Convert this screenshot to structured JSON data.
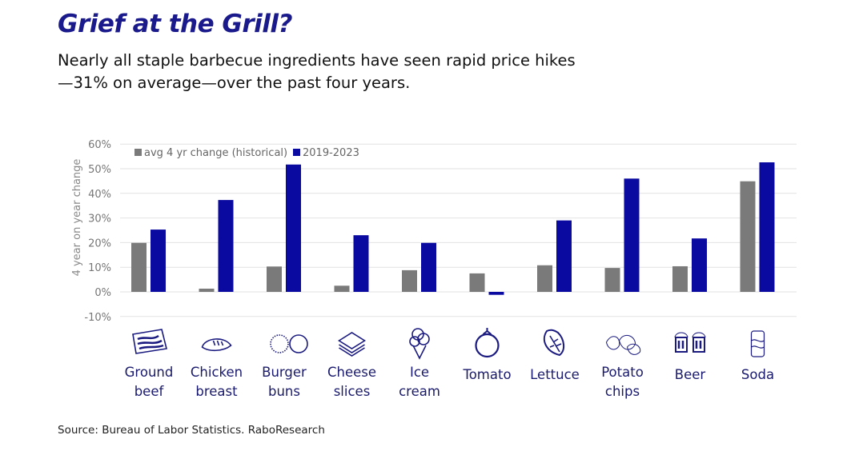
{
  "title": "Grief at the Grill?",
  "subtitle": "Nearly all staple barbecue ingredients have seen rapid price hikes—31% on average—over the past four years.",
  "source": "Source: Bureau of Labor Statistics. RaboResearch",
  "chart_data": {
    "type": "bar",
    "title": "",
    "xlabel": "",
    "ylabel": "4 year on year change",
    "ylim": [
      -10,
      60
    ],
    "yticks": [
      "60%",
      "50%",
      "40%",
      "30%",
      "20%",
      "10%",
      "0%",
      "-10%"
    ],
    "ytick_values": [
      60,
      50,
      40,
      30,
      20,
      10,
      0,
      -10
    ],
    "grid": true,
    "legend_position": "top-left",
    "categories": [
      {
        "lines": [
          "Ground",
          "beef"
        ],
        "icon": "ground-beef-icon"
      },
      {
        "lines": [
          "Chicken",
          "breast"
        ],
        "icon": "chicken-breast-icon"
      },
      {
        "lines": [
          "Burger",
          "buns"
        ],
        "icon": "burger-buns-icon"
      },
      {
        "lines": [
          "Cheese",
          "slices"
        ],
        "icon": "cheese-slices-icon"
      },
      {
        "lines": [
          "Ice",
          "cream"
        ],
        "icon": "ice-cream-icon"
      },
      {
        "lines": [
          "Tomato"
        ],
        "icon": "tomato-icon"
      },
      {
        "lines": [
          "Lettuce"
        ],
        "icon": "lettuce-icon"
      },
      {
        "lines": [
          "Potato",
          "chips"
        ],
        "icon": "potato-chips-icon"
      },
      {
        "lines": [
          "Beer"
        ],
        "icon": "beer-icon"
      },
      {
        "lines": [
          "Soda"
        ],
        "icon": "soda-icon"
      }
    ],
    "series": [
      {
        "name": "avg 4 yr change (historical)",
        "color": "#7a7a7a",
        "values": [
          19.9,
          1.3,
          10.3,
          2.5,
          8.8,
          7.5,
          10.8,
          9.7,
          10.4,
          44.9
        ]
      },
      {
        "name": "2019-2023",
        "color": "#0a0aa0",
        "values": [
          25.3,
          37.3,
          51.7,
          23.0,
          19.9,
          -1.2,
          29.0,
          46.0,
          21.7,
          52.6
        ]
      }
    ]
  }
}
